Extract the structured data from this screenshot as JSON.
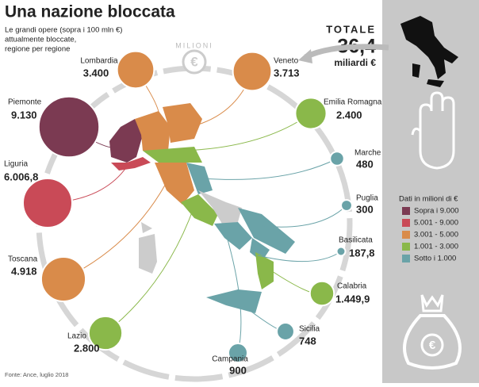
{
  "chart_data": {
    "type": "bubble",
    "title": "Una nazione bloccata",
    "subtitle": [
      "Le grandi opere (sopra i 100 mln €)",
      "attualmente bloccate,",
      "regione per regione"
    ],
    "ring_label": "MILIONI",
    "total": {
      "label": "TOTALE",
      "value": "36,4",
      "unit": "miliardi €"
    },
    "categories": [
      "Lombardia",
      "Veneto",
      "Piemonte",
      "Emilia Romagna",
      "Liguria",
      "Marche",
      "Puglia",
      "Toscana",
      "Basilicata",
      "Calabria",
      "Lazio",
      "Sicilia",
      "Campania"
    ],
    "values": [
      3400,
      3713,
      9130,
      2400,
      6006.8,
      480,
      300,
      4918,
      187.8,
      1449.9,
      2800,
      748,
      900
    ],
    "value_labels": [
      "3.400",
      "3.713",
      "9.130",
      "2.400",
      "6.006,8",
      "480",
      "300",
      "4.918",
      "187,8",
      "1.449,9",
      "2.800",
      "748",
      "900"
    ],
    "colors": [
      "#d98b4a",
      "#d98b4a",
      "#7b3a52",
      "#8ab84a",
      "#c94a57",
      "#6aa3a8",
      "#6aa3a8",
      "#d98b4a",
      "#6aa3a8",
      "#8ab84a",
      "#8ab84a",
      "#6aa3a8",
      "#6aa3a8"
    ],
    "legend": {
      "title": "Dati in milioni di €",
      "items": [
        {
          "name": "Sopra i 9.000",
          "color": "#7b3a52"
        },
        {
          "name": "5.001 - 9.000",
          "color": "#c94a57"
        },
        {
          "name": "3.001 - 5.000",
          "color": "#d98b4a"
        },
        {
          "name": "1.001 - 3.000",
          "color": "#8ab84a"
        },
        {
          "name": "Sotto i 1.000",
          "color": "#6aa3a8"
        }
      ]
    },
    "source": "Fonte: Ance, luglio 2018"
  }
}
